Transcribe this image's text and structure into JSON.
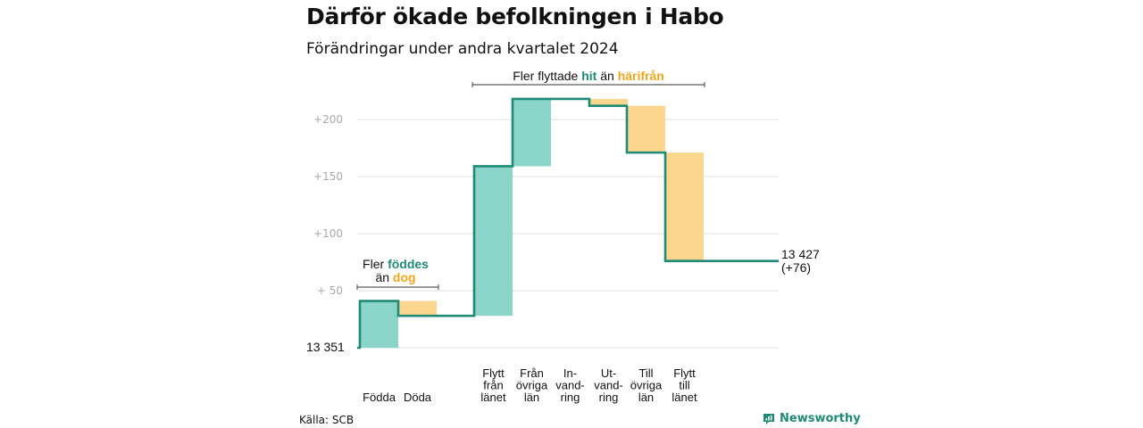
{
  "title": "Därför ökade befolkningen i Habo",
  "subtitle": "Förändringar under andra kvartalet 2024",
  "source": "Källa: SCB",
  "brand": "Newsworthy",
  "start_label": "13  351",
  "end_label": {
    "line1": "13 427",
    "line2": "(+76)"
  },
  "annotation_births": {
    "prefix": "Fler",
    "highlight1": "föddes",
    "middle": "än",
    "highlight2": "dog"
  },
  "annotation_moves": {
    "prefix": "Fler flyttade",
    "highlight1": "hit",
    "middle": "än",
    "highlight2": "härifrån"
  },
  "colors": {
    "increase": "#8ad4c9",
    "decrease": "#fad68f",
    "line": "#1f8a76",
    "grid": "#dcdcdc",
    "tick": "#a8a8a8"
  },
  "chart_data": {
    "type": "waterfall",
    "start_value": 13351,
    "end_value": 13427,
    "net_change": 76,
    "y_ticks": [
      "+200",
      "+150",
      "+100",
      "+  50"
    ],
    "y_tick_values": [
      200,
      150,
      100,
      50
    ],
    "ylim": [
      0,
      220
    ],
    "grid": true,
    "steps": [
      {
        "label": [
          "Födda"
        ],
        "change": 41,
        "kind": "increase"
      },
      {
        "label": [
          "Döda"
        ],
        "change": -13,
        "kind": "decrease"
      },
      {
        "label": [
          "Flytt",
          "från",
          "länet"
        ],
        "change": 131,
        "kind": "increase"
      },
      {
        "label": [
          "Från",
          "övriga",
          "län"
        ],
        "change": 59,
        "kind": "increase"
      },
      {
        "label": [
          "In-",
          "vand-",
          "ring"
        ],
        "change": 0,
        "kind": "increase"
      },
      {
        "label": [
          "Ut-",
          "vand-",
          "ring"
        ],
        "change": -6,
        "kind": "decrease"
      },
      {
        "label": [
          "Till",
          "övriga",
          "län"
        ],
        "change": -41,
        "kind": "decrease"
      },
      {
        "label": [
          "Flytt",
          "till",
          "länet"
        ],
        "change": -95,
        "kind": "decrease"
      }
    ]
  }
}
